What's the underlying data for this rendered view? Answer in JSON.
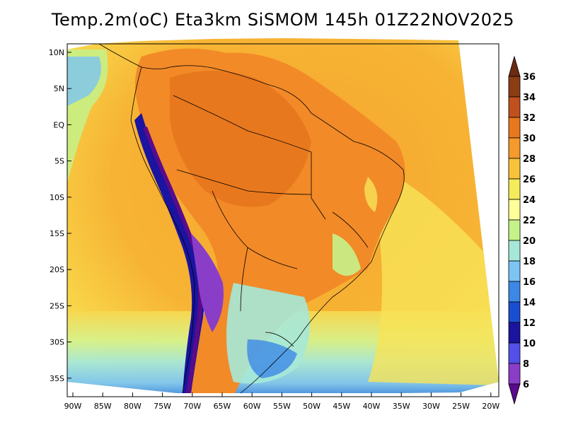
{
  "title": "Temp.2m(oC) Eta3km SiSMOM 145h 01Z22NOV2025",
  "axes": {
    "lat_labels": [
      "10N",
      "5N",
      "EQ",
      "5S",
      "10S",
      "15S",
      "20S",
      "25S",
      "30S",
      "35S"
    ],
    "lon_labels": [
      "90W",
      "85W",
      "80W",
      "75W",
      "70W",
      "65W",
      "60W",
      "55W",
      "50W",
      "45W",
      "40W",
      "35W",
      "30W",
      "25W",
      "20W"
    ]
  },
  "colorbar": {
    "labels": [
      "36",
      "34",
      "32",
      "30",
      "28",
      "26",
      "24",
      "22",
      "20",
      "18",
      "16",
      "14",
      "12",
      "10",
      "8",
      "6"
    ],
    "colors": [
      "#6b2a12",
      "#8b3d14",
      "#c0501d",
      "#e8781e",
      "#f59a2c",
      "#f8c23a",
      "#f4ec5a",
      "#ffff99",
      "#c6f28a",
      "#a6e8d8",
      "#7cc4f2",
      "#3c88e6",
      "#1a4ed0",
      "#1a14a0",
      "#5250e8",
      "#8a3ec8",
      "#5a0a8a"
    ]
  },
  "chart_data": {
    "type": "heatmap",
    "title": "Temp.2m(oC) Eta3km SiSMOM 145h 01Z22NOV2025",
    "variable": "2 m temperature",
    "units": "oC",
    "x_range": [
      -90,
      -20
    ],
    "y_range": [
      -38,
      11
    ],
    "color_scale_min": 6,
    "color_scale_max": 36,
    "color_scale_step": 2
  }
}
